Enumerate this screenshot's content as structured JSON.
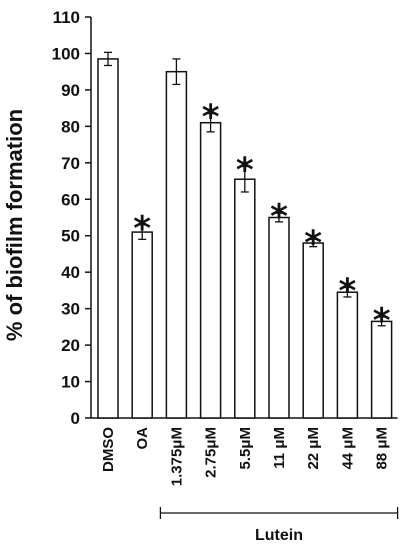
{
  "chart_data": {
    "type": "bar",
    "title": "",
    "xlabel": "",
    "ylabel": "% of biofilm formation",
    "ylim": [
      0,
      110
    ],
    "yticks": [
      0,
      10,
      20,
      30,
      40,
      50,
      60,
      70,
      80,
      90,
      100,
      110
    ],
    "grid": false,
    "categories": [
      "DMSO",
      "OA",
      "1.375μM",
      "2.75μM",
      "5.5μM",
      "11 μM",
      "22 μM",
      "44 μM",
      "88 μM"
    ],
    "values": [
      98.5,
      51,
      95,
      81,
      65.5,
      55,
      48,
      34.5,
      26.5
    ],
    "errors": [
      1.8,
      2.0,
      3.5,
      2.5,
      3.5,
      1.2,
      1.0,
      1.3,
      1.2
    ],
    "significant": [
      false,
      true,
      false,
      true,
      true,
      true,
      true,
      true,
      true
    ],
    "significance_marker": "*",
    "bar_color": "#ffffff",
    "edge_color": "#111111",
    "group": {
      "label": "Lutein",
      "start_index": 2,
      "end_index": 8
    }
  }
}
